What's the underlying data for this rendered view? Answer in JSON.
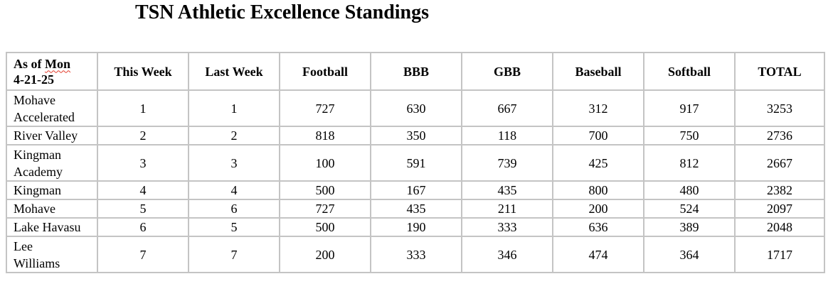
{
  "title": "TSN Athletic Excellence Standings",
  "header": {
    "as_of_word1": "As of",
    "as_of_word2": "Mon",
    "as_of_date": "4-21-25",
    "columns": [
      "This Week",
      "Last Week",
      "Football",
      "BBB",
      "GBB",
      "Baseball",
      "Softball",
      "TOTAL"
    ]
  },
  "rows": [
    {
      "school_line1": "Mohave",
      "school_line2": "Accelerated",
      "this_week": "1",
      "last_week": "1",
      "football": "727",
      "bbb": "630",
      "gbb": "667",
      "baseball": "312",
      "softball": "917",
      "total": "3253"
    },
    {
      "school_line1": "River Valley",
      "school_line2": "",
      "this_week": "2",
      "last_week": "2",
      "football": "818",
      "bbb": "350",
      "gbb": "118",
      "baseball": "700",
      "softball": "750",
      "total": "2736"
    },
    {
      "school_line1": "Kingman",
      "school_line2": "Academy",
      "this_week": "3",
      "last_week": "3",
      "football": "100",
      "bbb": "591",
      "gbb": "739",
      "baseball": "425",
      "softball": "812",
      "total": "2667"
    },
    {
      "school_line1": "Kingman",
      "school_line2": "",
      "this_week": "4",
      "last_week": "4",
      "football": "500",
      "bbb": "167",
      "gbb": "435",
      "baseball": "800",
      "softball": "480",
      "total": "2382"
    },
    {
      "school_line1": "Mohave",
      "school_line2": "",
      "this_week": "5",
      "last_week": "6",
      "football": "727",
      "bbb": "435",
      "gbb": "211",
      "baseball": "200",
      "softball": "524",
      "total": "2097"
    },
    {
      "school_line1": "Lake Havasu",
      "school_line2": "",
      "this_week": "6",
      "last_week": "5",
      "football": "500",
      "bbb": "190",
      "gbb": "333",
      "baseball": "636",
      "softball": "389",
      "total": "2048"
    },
    {
      "school_line1": "Lee",
      "school_line2": "Williams",
      "this_week": "7",
      "last_week": "7",
      "football": "200",
      "bbb": "333",
      "gbb": "346",
      "baseball": "474",
      "softball": "364",
      "total": "1717"
    }
  ],
  "colors": {
    "grid": "#c4c4c4",
    "text": "#000000",
    "spellcheck_underline": "#e23a2a"
  }
}
